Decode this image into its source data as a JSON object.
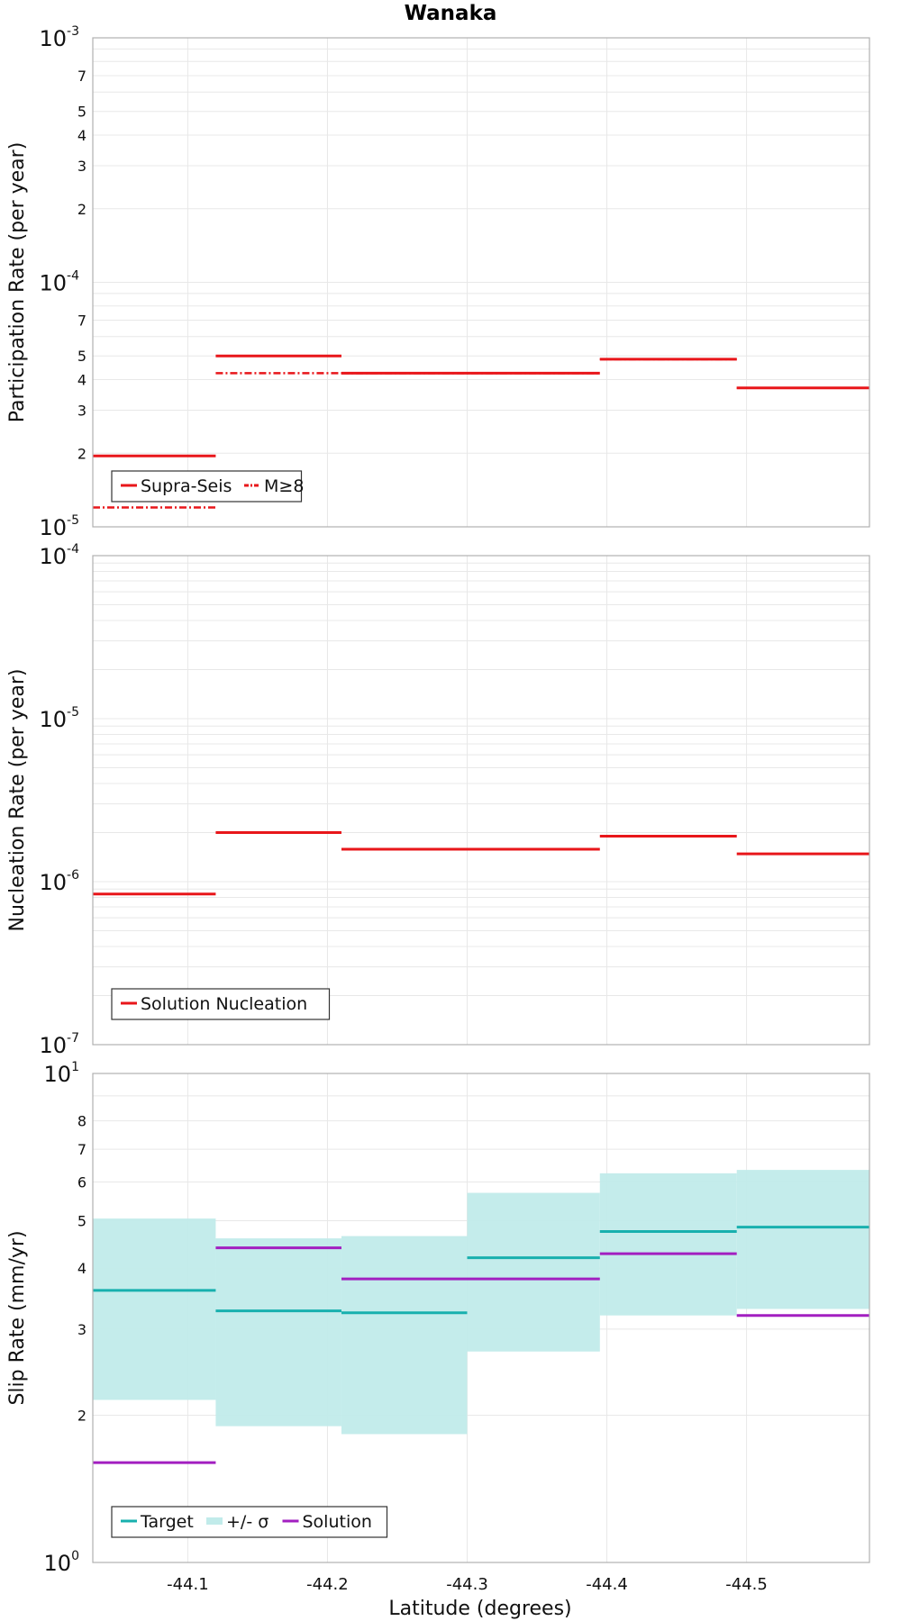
{
  "title": "Wanaka",
  "colors": {
    "red": "#e8161a",
    "teal": "#18b0ae",
    "teal_fill": "#c1ebea",
    "purple": "#a21fc0"
  },
  "xaxis": {
    "label": "Latitude (degrees)",
    "ticks": [
      "-44.1",
      "-44.2",
      "-44.3",
      "-44.4",
      "-44.5"
    ]
  },
  "chart_data": [
    {
      "type": "line",
      "step": true,
      "ylabel": "Participation Rate (per year)",
      "yscale": "log",
      "ylim": [
        1e-05,
        0.001
      ],
      "xlim": [
        -44.032,
        -44.588
      ],
      "grid": true,
      "legend": {
        "placement": "bottom-left",
        "entries": [
          "Supra-Seis",
          "M≥8"
        ]
      },
      "series": [
        {
          "name": "Supra-Seis",
          "style": "solid",
          "color": "#e8161a",
          "segments": [
            {
              "x": [
                -44.032,
                -44.12
              ],
              "y": 1.95e-05
            },
            {
              "x": [
                -44.12,
                -44.21
              ],
              "y": 5e-05
            },
            {
              "x": [
                -44.21,
                -44.395
              ],
              "y": 4.25e-05
            },
            {
              "x": [
                -44.395,
                -44.493
              ],
              "y": 4.85e-05
            },
            {
              "x": [
                -44.493,
                -44.588
              ],
              "y": 3.7e-05
            }
          ]
        },
        {
          "name": "M≥8",
          "style": "dashdot",
          "color": "#e8161a",
          "segments": [
            {
              "x": [
                -44.032,
                -44.12
              ],
              "y": 1.2e-05
            },
            {
              "x": [
                -44.12,
                -44.21
              ],
              "y": 4.25e-05
            },
            {
              "x": [
                -44.21,
                -44.395
              ],
              "y": 4.25e-05
            },
            {
              "x": [
                -44.395,
                -44.493
              ],
              "y": 4.85e-05
            },
            {
              "x": [
                -44.493,
                -44.588
              ],
              "y": 3.7e-05
            }
          ]
        }
      ]
    },
    {
      "type": "line",
      "step": true,
      "ylabel": "Nucleation Rate (per year)",
      "yscale": "log",
      "ylim": [
        1e-07,
        0.0001
      ],
      "xlim": [
        -44.032,
        -44.588
      ],
      "grid": true,
      "legend": {
        "placement": "bottom-left",
        "entries": [
          "Solution Nucleation"
        ]
      },
      "series": [
        {
          "name": "Solution Nucleation",
          "style": "solid",
          "color": "#e8161a",
          "segments": [
            {
              "x": [
                -44.032,
                -44.12
              ],
              "y": 8.4e-07
            },
            {
              "x": [
                -44.12,
                -44.21
              ],
              "y": 2e-06
            },
            {
              "x": [
                -44.21,
                -44.395
              ],
              "y": 1.58e-06
            },
            {
              "x": [
                -44.395,
                -44.493
              ],
              "y": 1.9e-06
            },
            {
              "x": [
                -44.493,
                -44.588
              ],
              "y": 1.48e-06
            }
          ]
        }
      ]
    },
    {
      "type": "line",
      "step": true,
      "ylabel": "Slip Rate (mm/yr)",
      "yscale": "log",
      "ylim": [
        1,
        10
      ],
      "xlim": [
        -44.032,
        -44.588
      ],
      "grid": true,
      "legend": {
        "placement": "bottom-left",
        "entries": [
          "Target",
          "+/- σ",
          "Solution"
        ]
      },
      "band": {
        "name": "+/- σ",
        "color": "#c1ebea",
        "segments": [
          {
            "x": [
              -44.032,
              -44.12
            ],
            "lo": 2.15,
            "hi": 5.05
          },
          {
            "x": [
              -44.12,
              -44.21
            ],
            "lo": 1.9,
            "hi": 4.6
          },
          {
            "x": [
              -44.21,
              -44.3
            ],
            "lo": 1.83,
            "hi": 4.65
          },
          {
            "x": [
              -44.3,
              -44.395
            ],
            "lo": 2.7,
            "hi": 5.7
          },
          {
            "x": [
              -44.395,
              -44.493
            ],
            "lo": 3.2,
            "hi": 6.25
          },
          {
            "x": [
              -44.493,
              -44.588
            ],
            "lo": 3.3,
            "hi": 6.35
          }
        ]
      },
      "series": [
        {
          "name": "Target",
          "style": "solid",
          "color": "#18b0ae",
          "segments": [
            {
              "x": [
                -44.032,
                -44.12
              ],
              "y": 3.6
            },
            {
              "x": [
                -44.12,
                -44.21
              ],
              "y": 3.27
            },
            {
              "x": [
                -44.21,
                -44.3
              ],
              "y": 3.24
            },
            {
              "x": [
                -44.3,
                -44.395
              ],
              "y": 4.2
            },
            {
              "x": [
                -44.395,
                -44.493
              ],
              "y": 4.75
            },
            {
              "x": [
                -44.493,
                -44.588
              ],
              "y": 4.85
            }
          ]
        },
        {
          "name": "Solution",
          "style": "solid",
          "color": "#a21fc0",
          "segments": [
            {
              "x": [
                -44.032,
                -44.12
              ],
              "y": 1.6
            },
            {
              "x": [
                -44.12,
                -44.21
              ],
              "y": 4.4
            },
            {
              "x": [
                -44.21,
                -44.395
              ],
              "y": 3.8
            },
            {
              "x": [
                -44.395,
                -44.493
              ],
              "y": 4.28
            },
            {
              "x": [
                -44.493,
                -44.588
              ],
              "y": 3.2
            }
          ]
        }
      ]
    }
  ]
}
